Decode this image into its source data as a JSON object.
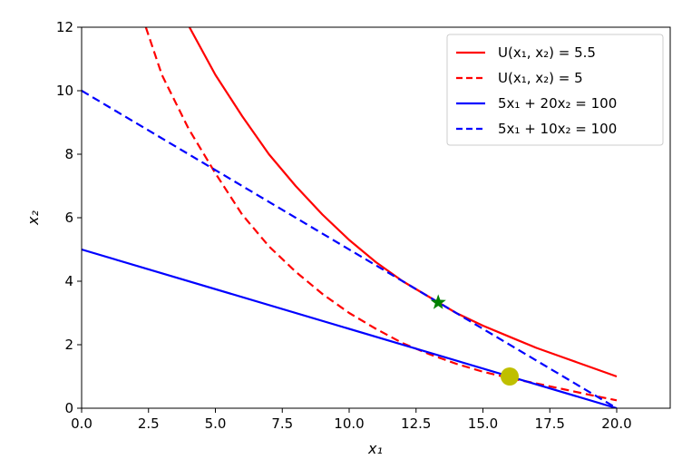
{
  "chart_data": {
    "type": "line",
    "title": "",
    "xlabel": "x₁",
    "ylabel": "x₂",
    "xlim": [
      0,
      22
    ],
    "ylim": [
      0,
      12
    ],
    "x_ticks": [
      0.0,
      2.5,
      5.0,
      7.5,
      10.0,
      12.5,
      15.0,
      17.5,
      20.0
    ],
    "x_tick_labels": [
      "0.0",
      "2.5",
      "5.0",
      "7.5",
      "10.0",
      "12.5",
      "15.0",
      "17.5",
      "20.0"
    ],
    "y_ticks": [
      0,
      2,
      4,
      6,
      8,
      10,
      12
    ],
    "y_tick_labels": [
      "0",
      "2",
      "4",
      "6",
      "8",
      "10",
      "12"
    ],
    "grid": false,
    "legend_position": "top-right",
    "series": [
      {
        "name": "U(x₁, x₂) = 5.5",
        "color": "#ff0000",
        "dash": "solid",
        "x": [
          4.03,
          5.0,
          6.0,
          7.0,
          8.0,
          9.0,
          10.0,
          11.0,
          12.0,
          13.0,
          14.0,
          15.0,
          16.0,
          17.0,
          18.0,
          19.0,
          20.0
        ],
        "y": [
          12.0,
          10.5,
          9.2,
          8.0,
          7.0,
          6.1,
          5.3,
          4.6,
          4.0,
          3.5,
          3.0,
          2.6,
          2.25,
          1.9,
          1.6,
          1.3,
          1.0
        ]
      },
      {
        "name": "U(x₁, x₂) = 5",
        "color": "#ff0000",
        "dash": "dashed",
        "x": [
          2.4,
          3.0,
          4.0,
          5.0,
          6.0,
          7.0,
          8.0,
          9.0,
          10.0,
          11.0,
          12.0,
          13.0,
          14.0,
          15.0,
          16.0,
          17.0,
          18.0,
          19.0,
          20.0
        ],
        "y": [
          12.0,
          10.5,
          8.8,
          7.4,
          6.1,
          5.1,
          4.3,
          3.6,
          3.0,
          2.5,
          2.05,
          1.7,
          1.4,
          1.15,
          0.95,
          0.78,
          0.6,
          0.42,
          0.25
        ]
      },
      {
        "name": "5x₁ + 20x₂ = 100",
        "color": "#0000ff",
        "dash": "solid",
        "x": [
          0,
          20
        ],
        "y": [
          5,
          0
        ]
      },
      {
        "name": "5x₁ + 10x₂ = 100",
        "color": "#0000ff",
        "dash": "dashed",
        "x": [
          0,
          20
        ],
        "y": [
          10,
          0
        ]
      }
    ],
    "markers": [
      {
        "shape": "star",
        "color": "#008000",
        "x": 13.33,
        "y": 3.33
      },
      {
        "shape": "circle",
        "color": "#bfbf00",
        "x": 16.0,
        "y": 1.0
      }
    ]
  }
}
